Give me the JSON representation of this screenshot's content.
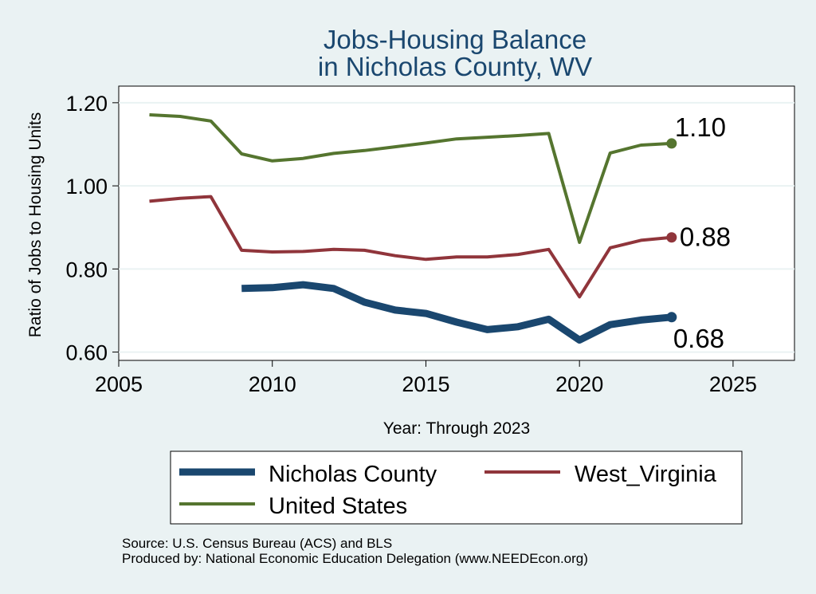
{
  "chart_data": {
    "type": "line",
    "title": "Jobs-Housing Balance",
    "subtitle": "in Nicholas County, WV",
    "xlabel": "Year: Through 2023",
    "ylabel": "Ratio of Jobs to Housing Units",
    "xlim": [
      2005,
      2027
    ],
    "ylim": [
      0.58,
      1.24
    ],
    "xticks": [
      2005,
      2010,
      2015,
      2020,
      2025
    ],
    "xtick_labels": [
      "2005",
      "2010",
      "2015",
      "2020",
      "2025"
    ],
    "yticks": [
      0.6,
      0.8,
      1.0,
      1.2
    ],
    "ytick_labels": [
      "0.60",
      "0.80",
      "1.00",
      "1.20"
    ],
    "grid": true,
    "legend_position": "bottom",
    "series": [
      {
        "name": "Nicholas County",
        "color": "#1a476f",
        "width": 9,
        "x": [
          2009,
          2010,
          2011,
          2012,
          2013,
          2014,
          2015,
          2016,
          2017,
          2018,
          2019,
          2020,
          2021,
          2022,
          2023
        ],
        "values": [
          0.753,
          0.755,
          0.762,
          0.753,
          0.72,
          0.701,
          0.693,
          0.672,
          0.654,
          0.661,
          0.679,
          0.629,
          0.666,
          0.677,
          0.684
        ],
        "end_label": "0.68"
      },
      {
        "name": "West_Virginia",
        "color": "#90353b",
        "width": 4,
        "x": [
          2006,
          2007,
          2008,
          2009,
          2010,
          2011,
          2012,
          2013,
          2014,
          2015,
          2016,
          2017,
          2018,
          2019,
          2020,
          2021,
          2022,
          2023
        ],
        "values": [
          0.963,
          0.97,
          0.974,
          0.845,
          0.841,
          0.842,
          0.847,
          0.845,
          0.832,
          0.823,
          0.829,
          0.829,
          0.835,
          0.847,
          0.733,
          0.851,
          0.869,
          0.876
        ],
        "end_label": "0.88"
      },
      {
        "name": "United States",
        "color": "#55752f",
        "width": 4,
        "x": [
          2006,
          2007,
          2008,
          2009,
          2010,
          2011,
          2012,
          2013,
          2014,
          2015,
          2016,
          2017,
          2018,
          2019,
          2020,
          2021,
          2022,
          2023
        ],
        "values": [
          1.171,
          1.167,
          1.156,
          1.077,
          1.06,
          1.066,
          1.078,
          1.085,
          1.094,
          1.103,
          1.113,
          1.117,
          1.121,
          1.126,
          0.864,
          1.079,
          1.098,
          1.102
        ],
        "end_label": "1.10"
      }
    ]
  },
  "source": {
    "line1": "Source: U.S. Census Bureau (ACS) and BLS",
    "line2": "Produced by: National Economic Education Delegation (www.NEEDEcon.org)"
  }
}
